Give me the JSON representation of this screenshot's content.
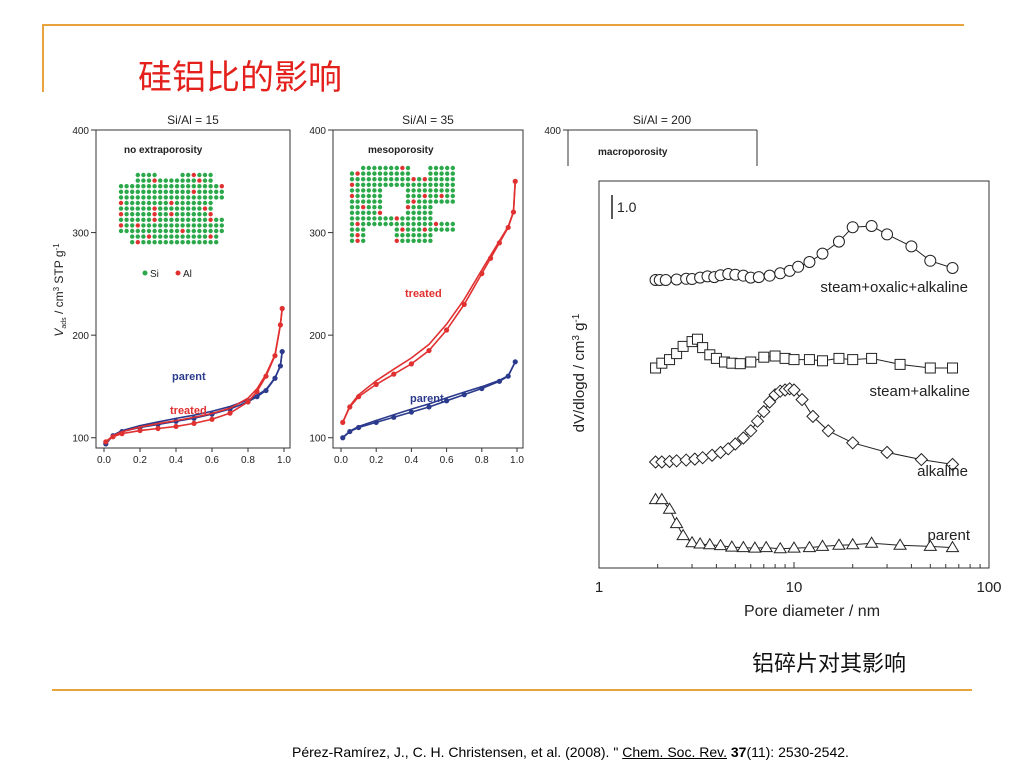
{
  "slide": {
    "title": "硅铝比的影响",
    "caption": "铝碎片对其影响",
    "reference": {
      "prefix": "Pérez-Ramírez, J., C. H. Christensen, et al. (2008). \" ",
      "journal": "Chem. Soc. Rev.",
      "volume": "37",
      "rest": "(11): 2530-2542."
    },
    "colors": {
      "accent_line": "#e8a33c",
      "title": "#e3201b"
    }
  },
  "chart_data": [
    {
      "type": "line",
      "title": "Si/Al = 15",
      "subtitle": "no extraporosity",
      "ylabel": "V",
      "ylabel_sub": "ads",
      "ylabel_rest": " / cm",
      "ylabel_sup": "3",
      "ylabel_unit": " STP g",
      "ylabel_unit_sup": "-1",
      "ylim": [
        90,
        400
      ],
      "yticks": [
        "100",
        "200",
        "300",
        "400"
      ],
      "xlim": [
        0,
        1
      ],
      "xticks": [
        "0.0",
        "0.2",
        "0.4",
        "0.6",
        "0.8",
        "1.0"
      ],
      "inset_legend": [
        "Si",
        "Al"
      ],
      "series": [
        {
          "name": "parent",
          "color": "#2b3a8c",
          "x": [
            0.01,
            0.05,
            0.1,
            0.2,
            0.3,
            0.4,
            0.5,
            0.6,
            0.7,
            0.8,
            0.85,
            0.9,
            0.95,
            0.98,
            0.99
          ],
          "y": [
            94,
            102,
            106,
            110,
            113,
            116,
            119,
            123,
            128,
            135,
            140,
            146,
            158,
            170,
            184
          ]
        },
        {
          "name": "treated",
          "color": "#e03030",
          "x": [
            0.01,
            0.05,
            0.1,
            0.2,
            0.3,
            0.4,
            0.5,
            0.6,
            0.7,
            0.8,
            0.85,
            0.9,
            0.95,
            0.98,
            0.99
          ],
          "y": [
            96,
            101,
            104,
            107,
            109,
            111,
            114,
            118,
            124,
            135,
            145,
            160,
            180,
            210,
            226
          ]
        }
      ]
    },
    {
      "type": "line",
      "title": "Si/Al = 35",
      "subtitle": "mesoporosity",
      "ylim": [
        90,
        400
      ],
      "yticks": [
        "100",
        "200",
        "300",
        "400"
      ],
      "xlim": [
        0,
        1
      ],
      "xticks": [
        "0.0",
        "0.2",
        "0.4",
        "0.6",
        "0.8",
        "1.0"
      ],
      "series": [
        {
          "name": "parent",
          "color": "#2b3a8c",
          "x": [
            0.01,
            0.05,
            0.1,
            0.2,
            0.3,
            0.4,
            0.5,
            0.6,
            0.7,
            0.8,
            0.9,
            0.95,
            0.99
          ],
          "y": [
            100,
            106,
            110,
            115,
            120,
            125,
            130,
            136,
            142,
            148,
            155,
            160,
            174
          ]
        },
        {
          "name": "treated",
          "color": "#e03030",
          "x": [
            0.01,
            0.05,
            0.1,
            0.2,
            0.3,
            0.4,
            0.5,
            0.6,
            0.7,
            0.8,
            0.85,
            0.9,
            0.95,
            0.98,
            0.99
          ],
          "y": [
            115,
            130,
            140,
            152,
            162,
            172,
            185,
            205,
            230,
            260,
            275,
            290,
            305,
            320,
            350
          ]
        }
      ]
    },
    {
      "type": "line",
      "title": "Si/Al = 200",
      "subtitle": "macroporosity",
      "yticks": [
        "400"
      ]
    },
    {
      "type": "line",
      "xscale": "log",
      "xlabel": "Pore diameter / nm",
      "ylabel": "dV/dlogd / cm",
      "ylabel_sup": "3",
      "ylabel_unit": " g",
      "ylabel_unit_sup": "-1",
      "xlim": [
        1,
        100
      ],
      "xticks": [
        "1",
        "10",
        "100"
      ],
      "scale_bar": "1.0",
      "series": [
        {
          "name": "steam+oxalic+alkaline",
          "marker": "circle",
          "x": [
            1.95,
            2.05,
            2.2,
            2.5,
            2.8,
            3.0,
            3.3,
            3.6,
            3.9,
            4.2,
            4.6,
            5.0,
            5.5,
            6.0,
            6.6,
            7.5,
            8.5,
            9.5,
            10.5,
            12,
            14,
            17,
            20,
            25,
            30,
            40,
            50,
            65
          ],
          "y": [
            0.0,
            0.0,
            0.0,
            0.02,
            0.05,
            0.04,
            0.1,
            0.15,
            0.12,
            0.2,
            0.25,
            0.22,
            0.18,
            0.1,
            0.12,
            0.18,
            0.28,
            0.38,
            0.55,
            0.75,
            1.1,
            1.6,
            2.2,
            2.25,
            1.9,
            1.4,
            0.8,
            0.5
          ]
        },
        {
          "name": "steam+alkaline",
          "marker": "square",
          "x": [
            1.95,
            2.1,
            2.3,
            2.5,
            2.7,
            3.0,
            3.2,
            3.4,
            3.7,
            4.0,
            4.4,
            4.8,
            5.3,
            6.0,
            7.0,
            8.0,
            9.0,
            10,
            12,
            14,
            17,
            20,
            25,
            35,
            50,
            65
          ],
          "y": [
            0.0,
            0.2,
            0.35,
            0.6,
            0.9,
            1.1,
            1.2,
            0.85,
            0.55,
            0.4,
            0.25,
            0.2,
            0.18,
            0.25,
            0.45,
            0.5,
            0.4,
            0.35,
            0.35,
            0.3,
            0.4,
            0.35,
            0.4,
            0.15,
            0.0,
            0.0
          ]
        },
        {
          "name": "alkaline",
          "marker": "diamond",
          "x": [
            1.95,
            2.1,
            2.3,
            2.5,
            2.8,
            3.1,
            3.4,
            3.8,
            4.2,
            4.6,
            5.0,
            5.5,
            6.0,
            6.5,
            7.0,
            7.5,
            8.0,
            8.5,
            9.0,
            9.5,
            10,
            11,
            12.5,
            15,
            20,
            30,
            45,
            65
          ],
          "y": [
            0.0,
            0.0,
            0.02,
            0.05,
            0.08,
            0.12,
            0.18,
            0.28,
            0.4,
            0.55,
            0.75,
            1.0,
            1.3,
            1.7,
            2.1,
            2.5,
            2.8,
            2.95,
            3.0,
            3.05,
            3.0,
            2.6,
            1.9,
            1.3,
            0.8,
            0.4,
            0.1,
            -0.1
          ]
        },
        {
          "name": "parent",
          "marker": "triangle",
          "x": [
            1.95,
            2.1,
            2.3,
            2.5,
            2.7,
            3.0,
            3.3,
            3.7,
            4.2,
            4.8,
            5.5,
            6.3,
            7.2,
            8.5,
            10,
            12,
            14,
            17,
            20,
            25,
            35,
            50,
            65
          ],
          "y": [
            2.1,
            2.1,
            1.7,
            1.1,
            0.6,
            0.3,
            0.25,
            0.22,
            0.18,
            0.12,
            0.1,
            0.08,
            0.1,
            0.05,
            0.08,
            0.1,
            0.15,
            0.2,
            0.22,
            0.28,
            0.2,
            0.15,
            0.1
          ]
        }
      ]
    }
  ]
}
